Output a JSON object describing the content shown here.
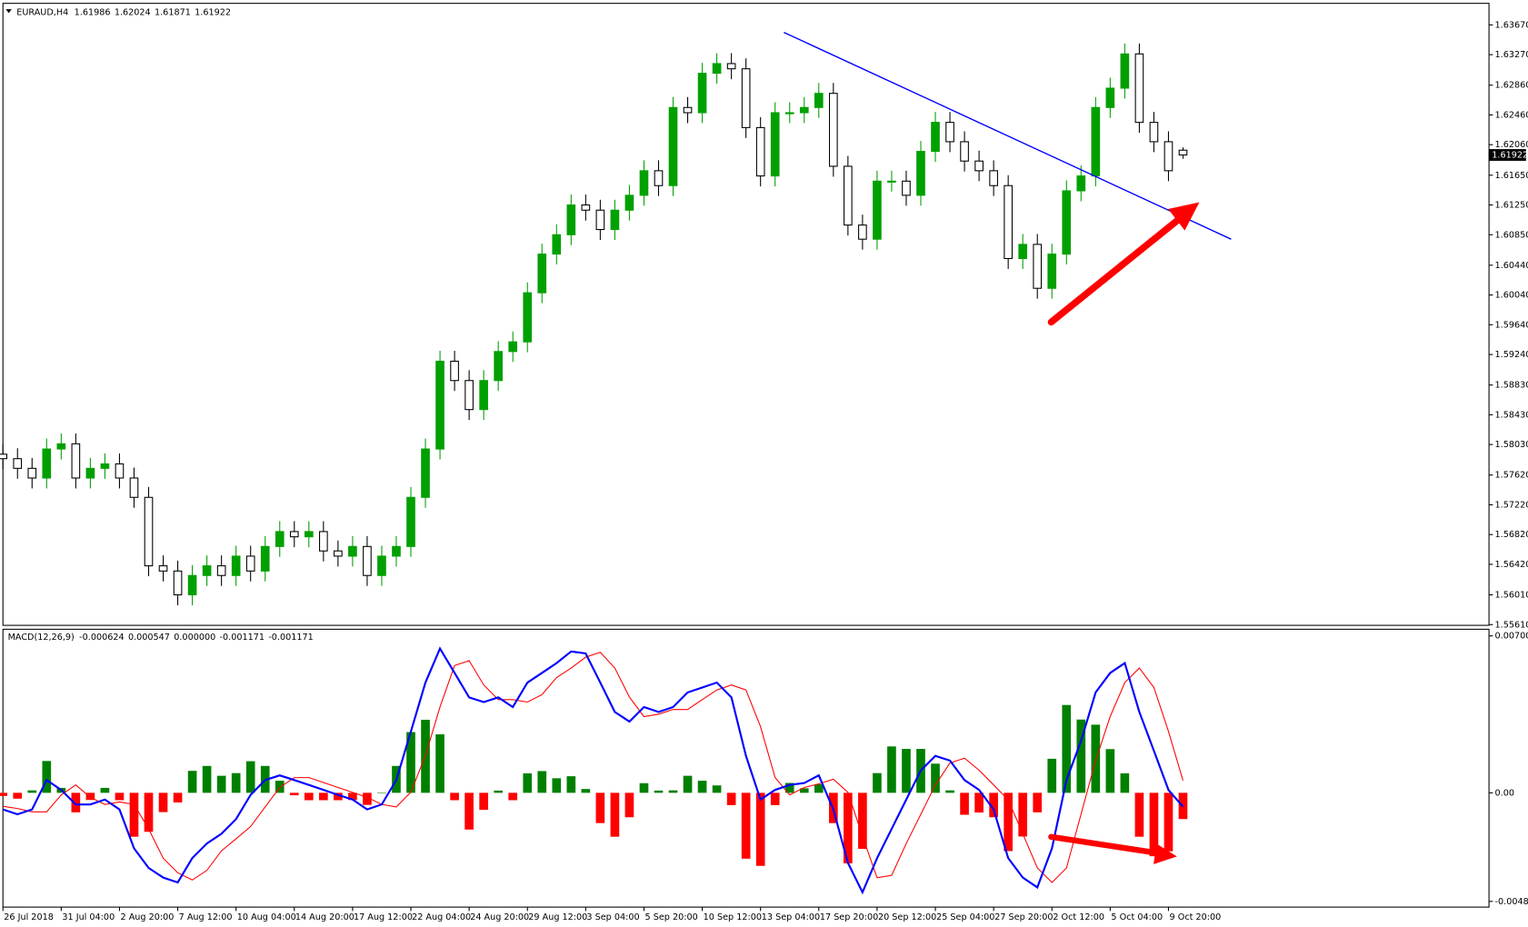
{
  "chart_data": [
    {
      "type": "candlestick",
      "title": "EURAUD,H4",
      "up_color": "#00a000",
      "down_color": "#000000",
      "x": [
        0,
        1,
        2,
        3,
        4,
        5,
        6,
        7,
        8,
        9,
        10,
        11,
        12,
        13,
        14,
        15,
        16,
        17,
        18,
        19,
        20,
        21,
        22,
        23,
        24,
        25,
        26,
        27,
        28,
        29,
        30,
        31,
        32,
        33,
        34,
        35,
        36,
        37,
        38,
        39,
        40,
        41,
        42,
        43,
        44,
        45,
        46,
        47,
        48,
        49,
        50,
        51,
        52,
        53,
        54,
        55,
        56,
        57,
        58,
        59,
        60,
        61,
        62,
        63,
        64,
        65,
        66,
        67,
        68,
        69,
        70,
        71,
        72,
        73,
        74,
        75,
        76,
        77,
        78,
        79,
        80,
        81
      ],
      "open": [
        1.579,
        1.5784,
        1.5771,
        1.5758,
        1.5797,
        1.5804,
        1.5758,
        1.5771,
        1.5777,
        1.5758,
        1.5732,
        1.564,
        1.5633,
        1.5601,
        1.5627,
        1.564,
        1.5627,
        1.5653,
        1.5633,
        1.5666,
        1.5686,
        1.5679,
        1.5686,
        1.566,
        1.5653,
        1.5666,
        1.5627,
        1.5653,
        1.5666,
        1.5732,
        1.5797,
        1.5915,
        1.5889,
        1.585,
        1.5889,
        1.5928,
        1.5941,
        1.6007,
        1.6059,
        1.6085,
        1.6125,
        1.6118,
        1.6092,
        1.6118,
        1.6138,
        1.6171,
        1.6151,
        1.6256,
        1.6249,
        1.6302,
        1.6315,
        1.6308,
        1.6229,
        1.6164,
        1.6249,
        1.6249,
        1.6256,
        1.6275,
        1.6177,
        1.6098,
        1.6079,
        1.6157,
        1.6157,
        1.6138,
        1.6197,
        1.6236,
        1.621,
        1.6184,
        1.6171,
        1.6151,
        1.6053,
        1.6072,
        1.6013,
        1.6059,
        1.6144,
        1.6164,
        1.6256,
        1.6282,
        1.6328,
        1.6236,
        1.621,
        1.61986
      ],
      "high": [
        1.5804,
        1.5798,
        1.5785,
        1.5811,
        1.5818,
        1.5818,
        1.5785,
        1.5791,
        1.5791,
        1.5772,
        1.5746,
        1.5654,
        1.5647,
        1.5641,
        1.5654,
        1.5654,
        1.5667,
        1.5667,
        1.568,
        1.57,
        1.57,
        1.57,
        1.57,
        1.5674,
        1.568,
        1.568,
        1.5667,
        1.568,
        1.5746,
        1.5811,
        1.5929,
        1.5929,
        1.5903,
        1.5903,
        1.5942,
        1.5955,
        1.6021,
        1.6073,
        1.6099,
        1.6139,
        1.6139,
        1.6132,
        1.6132,
        1.6152,
        1.6185,
        1.6185,
        1.627,
        1.627,
        1.6316,
        1.6329,
        1.6329,
        1.6322,
        1.6243,
        1.6263,
        1.6263,
        1.627,
        1.6289,
        1.6289,
        1.6191,
        1.6112,
        1.6171,
        1.6171,
        1.6171,
        1.6211,
        1.625,
        1.625,
        1.6224,
        1.6198,
        1.6185,
        1.6165,
        1.6086,
        1.6086,
        1.6073,
        1.6158,
        1.6178,
        1.627,
        1.6296,
        1.6342,
        1.6342,
        1.625,
        1.6224,
        1.62024
      ],
      "low": [
        1.577,
        1.5757,
        1.5744,
        1.5744,
        1.5783,
        1.5744,
        1.5744,
        1.5757,
        1.5744,
        1.5718,
        1.5626,
        1.5619,
        1.5587,
        1.5587,
        1.5613,
        1.5613,
        1.5613,
        1.5619,
        1.5619,
        1.5652,
        1.5665,
        1.5665,
        1.5646,
        1.5639,
        1.5639,
        1.5613,
        1.5613,
        1.5639,
        1.5652,
        1.5718,
        1.5783,
        1.5875,
        1.5836,
        1.5836,
        1.5875,
        1.5914,
        1.5927,
        1.5993,
        1.6045,
        1.6071,
        1.6104,
        1.6078,
        1.6078,
        1.6104,
        1.6124,
        1.6137,
        1.6137,
        1.6235,
        1.6235,
        1.6288,
        1.6294,
        1.6215,
        1.615,
        1.615,
        1.6235,
        1.6235,
        1.6242,
        1.6163,
        1.6084,
        1.6065,
        1.6065,
        1.6143,
        1.6124,
        1.6124,
        1.6183,
        1.6196,
        1.617,
        1.6157,
        1.6137,
        1.6039,
        1.6039,
        1.5999,
        1.5999,
        1.6045,
        1.613,
        1.615,
        1.6242,
        1.6268,
        1.6222,
        1.6196,
        1.6157,
        1.61871
      ],
      "close": [
        1.5784,
        1.5771,
        1.5758,
        1.5797,
        1.5804,
        1.5758,
        1.5771,
        1.5777,
        1.5758,
        1.5732,
        1.564,
        1.5633,
        1.5601,
        1.5627,
        1.564,
        1.5627,
        1.5653,
        1.5633,
        1.5666,
        1.5686,
        1.5679,
        1.5686,
        1.566,
        1.5653,
        1.5666,
        1.5627,
        1.5653,
        1.5666,
        1.5732,
        1.5797,
        1.5915,
        1.5889,
        1.585,
        1.5889,
        1.5928,
        1.5941,
        1.6007,
        1.6059,
        1.6085,
        1.6125,
        1.6118,
        1.6092,
        1.6118,
        1.6138,
        1.6171,
        1.6151,
        1.6256,
        1.6249,
        1.6302,
        1.6315,
        1.6308,
        1.6229,
        1.6164,
        1.6249,
        1.6249,
        1.6256,
        1.6275,
        1.6177,
        1.6098,
        1.6079,
        1.6157,
        1.6157,
        1.6138,
        1.6197,
        1.6236,
        1.621,
        1.6184,
        1.6171,
        1.6151,
        1.6053,
        1.6072,
        1.6013,
        1.6059,
        1.6144,
        1.6164,
        1.6256,
        1.6282,
        1.6328,
        1.6236,
        1.621,
        1.6171,
        1.61922
      ],
      "trendline": {
        "x": [
          53.6,
          84.3
        ],
        "y": [
          1.6357,
          1.6079
        ],
        "color": "#0000ff"
      },
      "xlim": [
        0,
        102
      ],
      "xticks": [
        {
          "value": 0,
          "label": "26 Jul 2018"
        },
        {
          "value": 4,
          "label": "31 Jul 04:00"
        },
        {
          "value": 8,
          "label": "2 Aug 20:00"
        },
        {
          "value": 12,
          "label": "7 Aug 12:00"
        },
        {
          "value": 16,
          "label": "10 Aug 04:00"
        },
        {
          "value": 20,
          "label": "14 Aug 20:00"
        },
        {
          "value": 24,
          "label": "17 Aug 12:00"
        },
        {
          "value": 28,
          "label": "22 Aug 04:00"
        },
        {
          "value": 32,
          "label": "24 Aug 20:00"
        },
        {
          "value": 36,
          "label": "29 Aug 12:00"
        },
        {
          "value": 40,
          "label": "3 Sep 04:00"
        },
        {
          "value": 44,
          "label": "5 Sep 20:00"
        },
        {
          "value": 48,
          "label": "10 Sep 12:00"
        },
        {
          "value": 52,
          "label": "13 Sep 04:00"
        },
        {
          "value": 56,
          "label": "17 Sep 20:00"
        },
        {
          "value": 60,
          "label": "20 Sep 12:00"
        },
        {
          "value": 64,
          "label": "25 Sep 04:00"
        },
        {
          "value": 68,
          "label": "27 Sep 20:00"
        },
        {
          "value": 72,
          "label": "2 Oct 12:00"
        },
        {
          "value": 76,
          "label": "5 Oct 04:00"
        },
        {
          "value": 80,
          "label": "9 Oct 20:00"
        }
      ],
      "ylim": [
        1.556,
        1.6396
      ],
      "yticks": [
        {
          "value": 1.6367,
          "label": "1.63670"
        },
        {
          "value": 1.6327,
          "label": "1.63270"
        },
        {
          "value": 1.6286,
          "label": "1.62860"
        },
        {
          "value": 1.6246,
          "label": "1.62460"
        },
        {
          "value": 1.6206,
          "label": "1.62060"
        },
        {
          "value": 1.6165,
          "label": "1.61650"
        },
        {
          "value": 1.6125,
          "label": "1.61250"
        },
        {
          "value": 1.6085,
          "label": "1.60850"
        },
        {
          "value": 1.6044,
          "label": "1.60440"
        },
        {
          "value": 1.6004,
          "label": "1.60040"
        },
        {
          "value": 1.5964,
          "label": "1.59640"
        },
        {
          "value": 1.5924,
          "label": "1.59240"
        },
        {
          "value": 1.5883,
          "label": "1.58830"
        },
        {
          "value": 1.5843,
          "label": "1.58430"
        },
        {
          "value": 1.5803,
          "label": "1.58030"
        },
        {
          "value": 1.5762,
          "label": "1.57620"
        },
        {
          "value": 1.5722,
          "label": "1.57220"
        },
        {
          "value": 1.5682,
          "label": "1.56820"
        },
        {
          "value": 1.5642,
          "label": "1.56420"
        },
        {
          "value": 1.5601,
          "label": "1.56010"
        },
        {
          "value": 1.5561,
          "label": "1.55610"
        }
      ]
    },
    {
      "type": "macd",
      "title": "MACD(12,26,9)",
      "header_values": [
        -0.000624,
        0.000547,
        {
          "value": 0,
          "label": "0.000000"
        },
        -0.001171,
        -0.001171
      ],
      "main": {
        "color": "#0000ff",
        "values": [
          -0.00074,
          -0.00096,
          -0.00074,
          0.00057,
          0.00013,
          -0.00052,
          -0.00052,
          -0.0003,
          -0.00074,
          -0.00248,
          -0.00335,
          -0.00378,
          -0.004,
          -0.00291,
          -0.00226,
          -0.00183,
          -0.00117,
          -9e-05,
          0.00057,
          0.00078,
          0.00057,
          0.00035,
          0.00013,
          -9e-05,
          -0.0003,
          -0.00074,
          -0.00052,
          0.00057,
          0.00274,
          0.00492,
          0.00644,
          0.00535,
          0.00426,
          0.00405,
          0.00426,
          0.00383,
          0.00492,
          0.00535,
          0.00579,
          0.00631,
          0.00622,
          0.00492,
          0.00361,
          0.00318,
          0.00383,
          0.00361,
          0.00383,
          0.00448,
          0.0047,
          0.00492,
          0.00426,
          0.00165,
          -0.0003,
          0.00013,
          0.00035,
          0.00044,
          0.00078,
          -0.00074,
          -0.00313,
          -0.00444,
          -0.00291,
          -0.00161,
          -0.0003,
          0.001,
          0.00165,
          0.00144,
          0.00057,
          0.00013,
          -0.00074,
          -0.00291,
          -0.00378,
          -0.00422,
          -0.00248,
          0.00057,
          0.00231,
          0.00448,
          0.00535,
          0.00579,
          0.00361,
          0.00187,
          0.00013,
          -0.000624
        ]
      },
      "signal": {
        "color": "#ff0000",
        "values": [
          -0.0006,
          -0.0007,
          -0.00085,
          -0.00085,
          -9e-05,
          0.00035,
          -0.0002,
          -0.00052,
          -0.00041,
          -0.00052,
          -0.00161,
          -0.00292,
          -0.00357,
          -0.00389,
          -0.00346,
          -0.00259,
          -0.00205,
          -0.0015,
          -0.00063,
          0.00024,
          0.00068,
          0.00068,
          0.00046,
          0.00024,
          2e-05,
          -0.0002,
          -0.00052,
          -0.00063,
          3e-05,
          0.00166,
          0.00383,
          0.00568,
          0.0059,
          0.00481,
          0.00416,
          0.00416,
          0.00405,
          0.00438,
          0.00514,
          0.00557,
          0.00605,
          0.00627,
          0.00557,
          0.00427,
          0.0034,
          0.00351,
          0.00372,
          0.00372,
          0.00416,
          0.00459,
          0.00481,
          0.00459,
          0.00296,
          0.00068,
          -9e-05,
          0.00024,
          0.0004,
          0.00061,
          2e-05,
          -0.00194,
          -0.00379,
          -0.00368,
          -0.00226,
          -0.00096,
          0.00035,
          0.00133,
          0.00155,
          0.00101,
          0.00035,
          -0.00031,
          -0.00183,
          -0.00335,
          -0.004,
          -0.00335,
          -0.00096,
          0.00144,
          0.0034,
          0.00492,
          0.00557,
          0.0047,
          0.00274,
          0.000547
        ]
      },
      "histogram": {
        "up_color": "#008000",
        "down_color": "#ff0000",
        "values": [
          -0.00014,
          -0.00026,
          0.00011,
          0.00142,
          0.00022,
          -0.00087,
          -0.00032,
          0.00022,
          -0.00033,
          -0.00196,
          -0.00174,
          -0.00086,
          -0.00043,
          0.00098,
          0.0012,
          0.00076,
          0.00088,
          0.00141,
          0.0012,
          0.00054,
          -0.00011,
          -0.00033,
          -0.00033,
          -0.00033,
          -0.00032,
          -0.00054,
          0,
          0.0012,
          0.00271,
          0.00326,
          0.00261,
          -0.00033,
          -0.00164,
          -0.00076,
          0.0001,
          -0.00033,
          0.00087,
          0.00097,
          0.00065,
          0.00074,
          0.00017,
          -0.00135,
          -0.00196,
          -0.00109,
          0.00043,
          0.0001,
          0.00011,
          0.00076,
          0.00054,
          0.00033,
          -0.00055,
          -0.00294,
          -0.00326,
          -0.00055,
          0.00044,
          0.0002,
          0.00038,
          -0.00135,
          -0.00315,
          -0.0025,
          0.00088,
          0.00207,
          0.00196,
          0.00196,
          0.0013,
          0.00011,
          -0.00098,
          -0.00088,
          -0.00109,
          -0.0026,
          -0.00195,
          -0.00087,
          0.00152,
          0.00392,
          0.00327,
          0.00304,
          0.00195,
          0.00087,
          -0.00196,
          -0.00283,
          -0.00261,
          -0.001171
        ]
      },
      "ylim": [
        -0.0051,
        0.0073
      ],
      "yticks": [
        0.007003,
        {
          "value": 0,
          "label": "0.00"
        },
        -0.004846
      ]
    }
  ]
}
